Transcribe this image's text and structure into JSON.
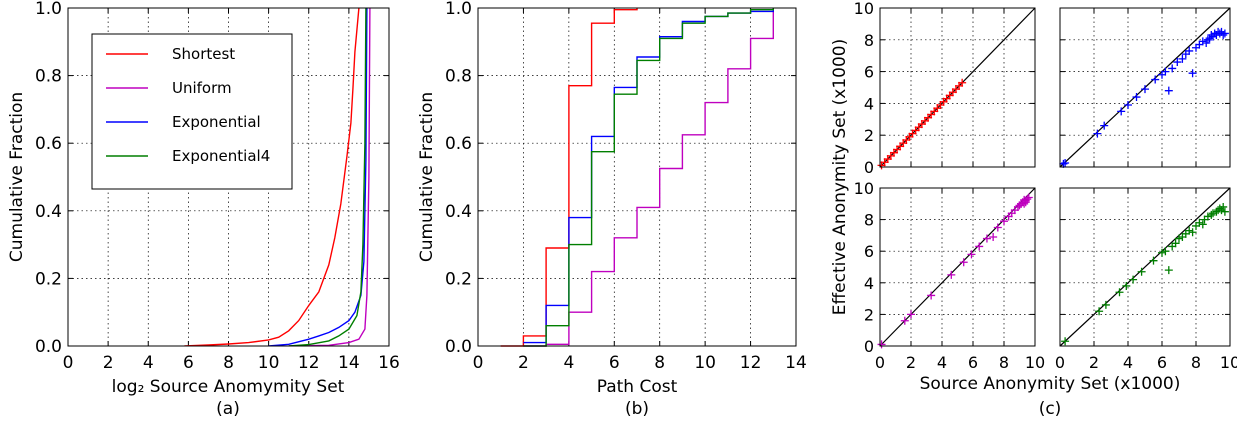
{
  "chart_data": [
    {
      "panel": "a",
      "type": "line",
      "caption": "(a)",
      "xlabel": "log₂ Source Anomymity Set",
      "ylabel": "Cumulative Fraction",
      "xlim": [
        0,
        16
      ],
      "ylim": [
        0,
        1
      ],
      "xticks": [
        "0",
        "2",
        "4",
        "6",
        "8",
        "10",
        "12",
        "14",
        "16"
      ],
      "yticks": [
        "0.0",
        "0.2",
        "0.4",
        "0.6",
        "0.8",
        "1.0"
      ],
      "grid": true,
      "legend": "top-left",
      "series": [
        {
          "name": "Shortest",
          "color": "#ff0000",
          "x": [
            5.8,
            7,
            8,
            9,
            10,
            10.5,
            11,
            11.5,
            12,
            12.5,
            13,
            13.3,
            13.6,
            13.9,
            14.1,
            14.2,
            14.3,
            14.5
          ],
          "y": [
            0,
            0.003,
            0.006,
            0.01,
            0.018,
            0.026,
            0.045,
            0.075,
            0.12,
            0.16,
            0.24,
            0.32,
            0.42,
            0.56,
            0.66,
            0.76,
            0.87,
            1.0
          ]
        },
        {
          "name": "Uniform",
          "color": "#bf00bf",
          "x": [
            11,
            13,
            14,
            14.5,
            14.8,
            14.9,
            15.0,
            15.05
          ],
          "y": [
            0,
            0.002,
            0.01,
            0.02,
            0.05,
            0.15,
            0.5,
            1.0
          ]
        },
        {
          "name": "Exponential",
          "color": "#0000ff",
          "x": [
            10,
            11,
            12,
            12.5,
            13,
            13.5,
            14,
            14.3,
            14.6,
            14.75,
            14.85,
            14.9
          ],
          "y": [
            0,
            0.005,
            0.02,
            0.03,
            0.04,
            0.055,
            0.075,
            0.1,
            0.15,
            0.25,
            0.55,
            1.0
          ]
        },
        {
          "name": "Exponential4",
          "color": "#007f00",
          "x": [
            11,
            12,
            13,
            13.5,
            14,
            14.4,
            14.6,
            14.7,
            14.8,
            14.85
          ],
          "y": [
            0,
            0.004,
            0.015,
            0.03,
            0.05,
            0.09,
            0.16,
            0.3,
            0.6,
            1.0
          ]
        }
      ]
    },
    {
      "panel": "b",
      "type": "line",
      "subtype": "step",
      "caption": "(b)",
      "xlabel": "Path Cost",
      "ylabel": "Cumulative Fraction",
      "xlim": [
        0,
        14
      ],
      "ylim": [
        0,
        1
      ],
      "xticks": [
        "0",
        "2",
        "4",
        "6",
        "8",
        "10",
        "12",
        "14"
      ],
      "yticks": [
        "0.0",
        "0.2",
        "0.4",
        "0.6",
        "0.8",
        "1.0"
      ],
      "grid": true,
      "series": [
        {
          "name": "Shortest",
          "color": "#ff0000",
          "x": [
            1,
            2,
            3,
            4,
            5,
            6,
            7
          ],
          "y": [
            0,
            0.03,
            0.29,
            0.77,
            0.955,
            0.995,
            1.0
          ]
        },
        {
          "name": "Uniform",
          "color": "#bf00bf",
          "x": [
            2,
            3,
            4,
            5,
            6,
            7,
            8,
            9,
            10,
            11,
            12,
            13
          ],
          "y": [
            0,
            0.005,
            0.1,
            0.22,
            0.32,
            0.41,
            0.525,
            0.625,
            0.72,
            0.82,
            0.91,
            1.0
          ]
        },
        {
          "name": "Exponential",
          "color": "#0000ff",
          "x": [
            2,
            3,
            4,
            5,
            6,
            7,
            8,
            9,
            10,
            11,
            12,
            13
          ],
          "y": [
            0.01,
            0.12,
            0.38,
            0.62,
            0.765,
            0.855,
            0.915,
            0.96,
            0.975,
            0.985,
            0.99,
            1.0
          ]
        },
        {
          "name": "Exponential4",
          "color": "#007f00",
          "x": [
            2,
            3,
            4,
            5,
            6,
            7,
            8,
            9,
            10,
            11,
            12,
            13
          ],
          "y": [
            0,
            0.06,
            0.3,
            0.575,
            0.745,
            0.845,
            0.91,
            0.955,
            0.975,
            0.985,
            0.995,
            1.0
          ]
        }
      ]
    },
    {
      "panel": "c",
      "type": "scatter",
      "caption": "(c)",
      "xlabel": "Source Anonymity Set (x1000)",
      "ylabel": "Effective Anonymity Set (x1000)",
      "xlim": [
        0,
        10
      ],
      "ylim": [
        0,
        10
      ],
      "xticks": [
        "0",
        "2",
        "4",
        "6",
        "8",
        "10"
      ],
      "yticks": [
        "0",
        "2",
        "4",
        "6",
        "8",
        "10"
      ],
      "grid": true,
      "reference_line": "y = x",
      "subplots": [
        {
          "name": "Shortest",
          "color": "#ff0000",
          "points": [
            [
              0.1,
              0.1
            ],
            [
              0.3,
              0.3
            ],
            [
              0.5,
              0.5
            ],
            [
              0.7,
              0.7
            ],
            [
              0.9,
              0.9
            ],
            [
              1.1,
              1.1
            ],
            [
              1.3,
              1.3
            ],
            [
              1.5,
              1.5
            ],
            [
              1.7,
              1.7
            ],
            [
              1.9,
              1.9
            ],
            [
              2.1,
              2.1
            ],
            [
              2.3,
              2.3
            ],
            [
              2.5,
              2.5
            ],
            [
              2.7,
              2.7
            ],
            [
              2.9,
              2.9
            ],
            [
              3.1,
              3.1
            ],
            [
              3.3,
              3.3
            ],
            [
              3.5,
              3.5
            ],
            [
              3.7,
              3.7
            ],
            [
              3.9,
              3.9
            ],
            [
              4.1,
              4.1
            ],
            [
              4.3,
              4.3
            ],
            [
              4.5,
              4.5
            ],
            [
              4.7,
              4.7
            ],
            [
              4.9,
              4.9
            ],
            [
              5.1,
              5.1
            ],
            [
              5.3,
              5.3
            ]
          ]
        },
        {
          "name": "Exponential",
          "color": "#0000ff",
          "points": [
            [
              0.2,
              0.2
            ],
            [
              0.3,
              0.25
            ],
            [
              2.2,
              2.1
            ],
            [
              2.6,
              2.6
            ],
            [
              3.6,
              3.5
            ],
            [
              4.0,
              3.9
            ],
            [
              4.5,
              4.4
            ],
            [
              5.0,
              4.9
            ],
            [
              5.6,
              5.5
            ],
            [
              6.0,
              5.8
            ],
            [
              6.2,
              6.0
            ],
            [
              6.4,
              4.8
            ],
            [
              6.6,
              6.2
            ],
            [
              6.9,
              6.6
            ],
            [
              7.2,
              6.8
            ],
            [
              7.4,
              7.1
            ],
            [
              7.6,
              7.3
            ],
            [
              7.8,
              5.9
            ],
            [
              8.0,
              7.5
            ],
            [
              8.2,
              7.7
            ],
            [
              8.4,
              7.9
            ],
            [
              8.6,
              7.8
            ],
            [
              8.7,
              8.0
            ],
            [
              8.8,
              8.1
            ],
            [
              8.9,
              8.3
            ],
            [
              9.0,
              8.2
            ],
            [
              9.1,
              8.4
            ],
            [
              9.2,
              8.3
            ],
            [
              9.3,
              8.5
            ],
            [
              9.4,
              8.4
            ],
            [
              9.5,
              8.5
            ],
            [
              9.6,
              8.3
            ],
            [
              9.7,
              8.4
            ]
          ]
        },
        {
          "name": "Uniform",
          "color": "#bf00bf",
          "points": [
            [
              0.1,
              0.1
            ],
            [
              1.6,
              1.6
            ],
            [
              2.0,
              2.0
            ],
            [
              3.3,
              3.2
            ],
            [
              4.6,
              4.5
            ],
            [
              5.4,
              5.3
            ],
            [
              5.9,
              5.8
            ],
            [
              6.4,
              6.3
            ],
            [
              6.9,
              6.8
            ],
            [
              7.3,
              6.9
            ],
            [
              7.6,
              7.5
            ],
            [
              8.0,
              7.9
            ],
            [
              8.3,
              8.2
            ],
            [
              8.5,
              8.4
            ],
            [
              8.7,
              8.6
            ],
            [
              8.9,
              8.8
            ],
            [
              9.0,
              8.9
            ],
            [
              9.1,
              9.0
            ],
            [
              9.2,
              9.1
            ],
            [
              9.3,
              9.0
            ],
            [
              9.4,
              9.2
            ],
            [
              9.5,
              9.3
            ],
            [
              9.6,
              9.4
            ],
            [
              9.4,
              9.1
            ],
            [
              9.3,
              9.25
            ]
          ]
        },
        {
          "name": "Exponential4",
          "color": "#007f00",
          "points": [
            [
              0.3,
              0.3
            ],
            [
              2.3,
              2.2
            ],
            [
              2.7,
              2.6
            ],
            [
              3.5,
              3.4
            ],
            [
              3.9,
              3.8
            ],
            [
              4.3,
              4.2
            ],
            [
              4.8,
              4.7
            ],
            [
              5.5,
              5.4
            ],
            [
              6.0,
              5.9
            ],
            [
              6.2,
              6.0
            ],
            [
              6.4,
              4.8
            ],
            [
              6.6,
              6.3
            ],
            [
              6.8,
              6.5
            ],
            [
              7.0,
              6.8
            ],
            [
              7.2,
              6.9
            ],
            [
              7.4,
              7.1
            ],
            [
              7.6,
              7.3
            ],
            [
              7.8,
              7.2
            ],
            [
              8.0,
              7.6
            ],
            [
              8.2,
              7.8
            ],
            [
              8.4,
              7.7
            ],
            [
              8.5,
              8.0
            ],
            [
              8.7,
              8.2
            ],
            [
              8.9,
              8.3
            ],
            [
              9.0,
              8.4
            ],
            [
              9.2,
              8.5
            ],
            [
              9.3,
              8.6
            ],
            [
              9.4,
              8.7
            ],
            [
              9.5,
              8.6
            ],
            [
              9.6,
              8.8
            ],
            [
              9.7,
              8.5
            ]
          ]
        }
      ]
    }
  ]
}
